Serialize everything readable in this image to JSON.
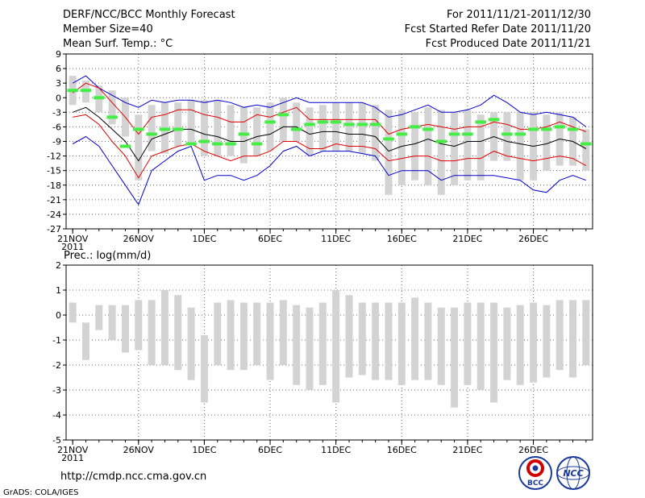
{
  "header": {
    "title": "DERF/NCC/BCC Monthly Forecast",
    "member_size": "Member Size=40",
    "variable_top": "Mean Surf. Temp.: °C",
    "period": "For 2011/11/21-2011/12/30",
    "fcst_started": "Fcst Started Refer Date 2011/11/20",
    "fcst_produced": "Fcst Produced Date 2011/11/21"
  },
  "footer": {
    "url": "http://cmdp.ncc.cma.gov.cn",
    "grads": "GrADS: COLA/IGES",
    "logo_bcc": "BCC",
    "logo_ncc": "NCC"
  },
  "colors": {
    "box": "#d3d3d3",
    "ensemble_mean": "#000000",
    "spread": "#e00000",
    "extreme": "#0000cc",
    "observed": "#44ee44",
    "grid": "#666666"
  },
  "chart_data": [
    {
      "type": "box_line",
      "title": "Mean Surf. Temp.: °C",
      "ylabel": "°C",
      "ylim": [
        -27,
        9
      ],
      "yticks": [
        9,
        6,
        3,
        0,
        -3,
        -6,
        -9,
        -12,
        -15,
        -18,
        -21,
        -24,
        -27
      ],
      "xlim": [
        0.5,
        40.5
      ],
      "xticks": [
        {
          "day": 1,
          "label": "21NOV",
          "sub": "2011"
        },
        {
          "day": 6,
          "label": "26NOV",
          "sub": ""
        },
        {
          "day": 11,
          "label": "1DEC",
          "sub": ""
        },
        {
          "day": 16,
          "label": "6DEC",
          "sub": ""
        },
        {
          "day": 21,
          "label": "11DEC",
          "sub": ""
        },
        {
          "day": 26,
          "label": "16DEC",
          "sub": ""
        },
        {
          "day": 31,
          "label": "21DEC",
          "sub": ""
        },
        {
          "day": 36,
          "label": "26DEC",
          "sub": ""
        }
      ],
      "box_high": [
        4.5,
        3.5,
        2.5,
        1.5,
        0,
        -3.5,
        -1.5,
        -1,
        -1,
        -0.5,
        -0.5,
        -0.5,
        -1.5,
        -2,
        -2,
        -1,
        0,
        -1,
        -2,
        -1.5,
        -1,
        -1,
        -1,
        -1.5,
        -2.5,
        -2.5,
        -3,
        -2,
        -2.5,
        -3,
        -2.5,
        -3.5,
        -3,
        -3,
        -3,
        -3,
        -3.5,
        -3,
        -4,
        -6.5
      ],
      "box_low": [
        -1.5,
        -1,
        -3,
        -5.5,
        -8,
        -17,
        -11,
        -11.5,
        -10,
        -9.5,
        -12,
        -12,
        -12,
        -13.5,
        -12,
        -11,
        -9,
        -9,
        -12,
        -11,
        -11,
        -11,
        -11.5,
        -13,
        -20,
        -18,
        -17,
        -18,
        -20,
        -18,
        -17,
        -17,
        -13,
        -13,
        -17,
        -17,
        -15,
        -14,
        -14,
        -15
      ],
      "mean": [
        -3,
        -2,
        -4,
        -6.5,
        -9,
        -13,
        -8.5,
        -7.5,
        -6.5,
        -6.5,
        -7.5,
        -8,
        -9,
        -9,
        -8,
        -7.5,
        -6,
        -6,
        -7.5,
        -7,
        -7,
        -7.5,
        -7.5,
        -8,
        -11,
        -10,
        -9.5,
        -8.5,
        -9.5,
        -10,
        -9,
        -9,
        -8,
        -9,
        -9.5,
        -10,
        -9.5,
        -8.5,
        -9,
        -10.5
      ],
      "spread_high": [
        1,
        3,
        2,
        -1,
        -4,
        -7.5,
        -4,
        -3.5,
        -2.5,
        -2.5,
        -3.5,
        -4,
        -5,
        -5,
        -3.5,
        -4,
        -3,
        -2,
        -4.5,
        -4.5,
        -4.5,
        -4.5,
        -4.5,
        -4.5,
        -7.5,
        -6.5,
        -6,
        -5.5,
        -6,
        -6.5,
        -6,
        -6,
        -5,
        -5.5,
        -6.5,
        -6.5,
        -6,
        -5,
        -6,
        -7
      ],
      "spread_low": [
        -4,
        -3.5,
        -5.5,
        -9,
        -12,
        -16.5,
        -12,
        -11,
        -10,
        -9.5,
        -11,
        -12,
        -13,
        -12,
        -12,
        -11,
        -9,
        -9,
        -10.5,
        -10.5,
        -9.5,
        -10,
        -10,
        -10.5,
        -13,
        -12.5,
        -12,
        -12,
        -13,
        -13,
        -12.5,
        -12.5,
        -11,
        -12,
        -12.5,
        -13,
        -12.5,
        -12,
        -12.5,
        -14
      ],
      "max": [
        3,
        4.5,
        2,
        0.5,
        -1,
        -2,
        -0.5,
        -1,
        -0.5,
        -0.5,
        -1,
        -0.5,
        -1,
        -2,
        -1.5,
        -2,
        -1,
        0,
        -1,
        -1,
        -1,
        -1,
        -1,
        -2,
        -4,
        -3.5,
        -2.5,
        -1.5,
        -3,
        -3,
        -2.5,
        -1.5,
        0.5,
        -1,
        -3,
        -3.5,
        -3,
        -3.5,
        -4,
        -6
      ],
      "min": [
        -9.5,
        -8,
        -10,
        -14,
        -18,
        -22,
        -15,
        -13,
        -11,
        -10,
        -17,
        -16,
        -16,
        -17,
        -16,
        -14,
        -11,
        -10,
        -12,
        -11,
        -11,
        -11,
        -11.5,
        -12,
        -16,
        -15,
        -15,
        -15,
        -17,
        -16,
        -16,
        -16,
        -16,
        -16.5,
        -17,
        -19,
        -19.5,
        -17,
        -16,
        -17
      ],
      "observed": [
        1.5,
        1.5,
        0,
        -4,
        -10,
        -6.5,
        -7.5,
        -6.5,
        -6.5,
        -9.5,
        -9,
        -9.5,
        -9.5,
        -7.5,
        -9.5,
        -5,
        -3.5,
        -6.5,
        -5.5,
        -5,
        -5,
        -5.5,
        -5.5,
        -5.5,
        -8.5,
        -7.5,
        -6,
        -6.5,
        -9,
        -7.5,
        -7.5,
        -5,
        -4.5,
        -7.5,
        -7.5,
        -6.5,
        -6.5,
        -6,
        -6.5,
        -9.5
      ]
    },
    {
      "type": "box_line",
      "title": "Prec.: log(mm/d)",
      "ylabel": "log(mm/d)",
      "ylim": [
        -5,
        2
      ],
      "yticks": [
        2,
        1,
        0,
        -1,
        -2,
        -3,
        -4,
        -5
      ],
      "xlim": [
        0.5,
        40.5
      ],
      "xticks": [
        {
          "day": 1,
          "label": "21NOV",
          "sub": "2011"
        },
        {
          "day": 6,
          "label": "26NOV",
          "sub": ""
        },
        {
          "day": 11,
          "label": "1DEC",
          "sub": ""
        },
        {
          "day": 16,
          "label": "6DEC",
          "sub": ""
        },
        {
          "day": 21,
          "label": "11DEC",
          "sub": ""
        },
        {
          "day": 26,
          "label": "16DEC",
          "sub": ""
        },
        {
          "day": 31,
          "label": "21DEC",
          "sub": ""
        },
        {
          "day": 36,
          "label": "26DEC",
          "sub": ""
        }
      ],
      "box_high": [
        0.5,
        -0.3,
        0.4,
        0.4,
        0.4,
        0.6,
        0.6,
        1,
        0.8,
        0.3,
        -0.8,
        0.5,
        0.6,
        0.5,
        0.5,
        0.5,
        0.6,
        0.4,
        0.3,
        0.5,
        1,
        0.8,
        0.5,
        0.5,
        0.5,
        0.5,
        0.7,
        0.5,
        0.3,
        0.3,
        0.5,
        0.5,
        0.5,
        0.3,
        0.4,
        0.5,
        0.4,
        0.6,
        0.6,
        0.6
      ],
      "box_low": [
        -0.3,
        -1.8,
        -0.6,
        -1,
        -1.5,
        -1.4,
        -2,
        -2,
        -2.2,
        -2.6,
        -3.5,
        -2,
        -2.2,
        -2.2,
        -2,
        -2.6,
        -2,
        -2.8,
        -3,
        -2.8,
        -3.5,
        -2.5,
        -2.4,
        -2.6,
        -2.6,
        -2.8,
        -2.6,
        -2.6,
        -2.8,
        -3.7,
        -2.8,
        -3,
        -3.5,
        -2.6,
        -2.8,
        -2.7,
        -2.5,
        -2.2,
        -2.5,
        -2
      ]
    }
  ]
}
